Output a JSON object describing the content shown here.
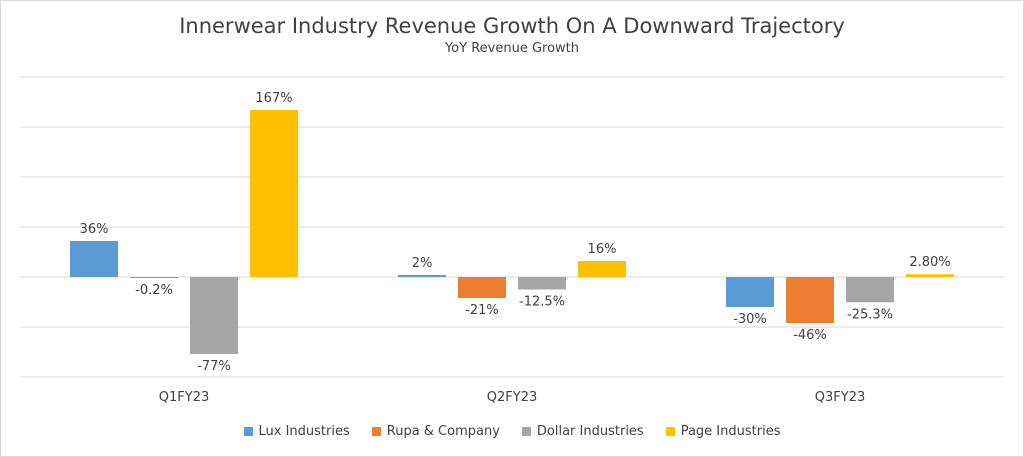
{
  "chart_data": {
    "type": "bar",
    "title": "Innerwear Industry Revenue Growth On A Downward Trajectory",
    "subtitle": "YoY Revenue Growth",
    "categories": [
      "Q1FY23",
      "Q2FY23",
      "Q3FY23"
    ],
    "series": [
      {
        "name": "Lux Industries",
        "color": "#5b9bd5",
        "values": [
          36,
          2,
          -30
        ],
        "labels": [
          "36%",
          "2%",
          "-30%"
        ]
      },
      {
        "name": "Rupa & Company",
        "color": "#ed7d31",
        "values": [
          -0.2,
          -21,
          -46
        ],
        "labels": [
          "-0.2%",
          "-21%",
          "-46%"
        ]
      },
      {
        "name": "Dollar Industries",
        "color": "#a5a5a5",
        "values": [
          -77,
          -12.5,
          -25.3
        ],
        "labels": [
          "-77%",
          "-12.5%",
          "-25.3%"
        ]
      },
      {
        "name": "Page Industries",
        "color": "#ffc000",
        "values": [
          167,
          16,
          2.8
        ],
        "labels": [
          "167%",
          "16%",
          "2.80%"
        ]
      }
    ],
    "ylim": [
      -100,
      200
    ],
    "grid": true,
    "legend_position": "bottom"
  }
}
